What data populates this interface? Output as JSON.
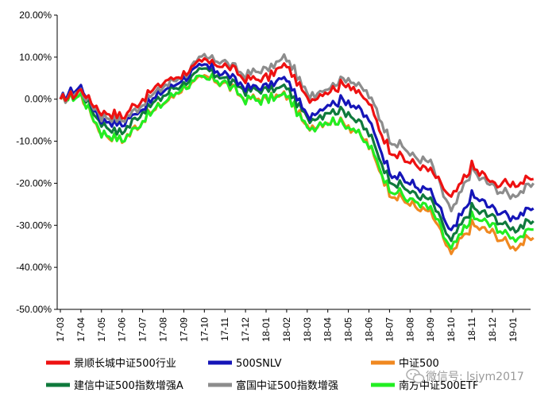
{
  "chart_data": {
    "type": "line",
    "title": "",
    "xlabel": "",
    "ylabel": "",
    "ylim": [
      -50,
      20
    ],
    "yticks": [
      20,
      10,
      0,
      -10,
      -20,
      -30,
      -40,
      -50
    ],
    "ytick_labels": [
      "20.00%",
      "10.00%",
      "0.00%",
      "-10.00%",
      "-20.00%",
      "-30.00%",
      "-40.00%",
      "-50.00%"
    ],
    "x": [
      "17-03",
      "17-04",
      "17-05",
      "17-06",
      "17-07",
      "17-08",
      "17-09",
      "17-10",
      "17-11",
      "17-12",
      "18-01",
      "18-02",
      "18-03",
      "18-04",
      "18-05",
      "18-06",
      "18-07",
      "18-08",
      "18-09",
      "18-10",
      "18-11",
      "18-12",
      "19-01",
      "19-01e"
    ],
    "xtick_labels": [
      "17-03",
      "17-04",
      "17-05",
      "17-06",
      "17-07",
      "17-08",
      "17-09",
      "17-10",
      "17-11",
      "17-12",
      "18-01",
      "18-02",
      "18-03",
      "18-04",
      "18-05",
      "18-06",
      "18-07",
      "18-08",
      "18-09",
      "18-10",
      "18-11",
      "18-12",
      "19-01"
    ],
    "grid": false,
    "legend_position": "bottom",
    "series": [
      {
        "name": "景顺长城中证500行业",
        "color": "#ee1111",
        "values": [
          0,
          2,
          -3,
          -4,
          0,
          4,
          6,
          9,
          8,
          5,
          5,
          8,
          0,
          2,
          4,
          -1,
          -12,
          -15,
          -17,
          -24,
          -16,
          -20,
          -20,
          -19
        ]
      },
      {
        "name": "500SNLV",
        "color": "#1515b8",
        "values": [
          0,
          3,
          -5,
          -6,
          -2,
          2,
          5,
          8,
          6,
          3,
          3,
          5,
          -4,
          -1,
          0,
          -5,
          -17,
          -20,
          -22,
          -32,
          -23,
          -26,
          -28,
          -26
        ]
      },
      {
        "name": "中证500",
        "color": "#f08820",
        "values": [
          0,
          1,
          -8,
          -10,
          -5,
          -1,
          3,
          5,
          4,
          0,
          0,
          1,
          -7,
          -5,
          -6,
          -11,
          -22,
          -25,
          -27,
          -37,
          -30,
          -32,
          -35,
          -33
        ]
      },
      {
        "name": "建信中证500指数增强A",
        "color": "#0f7a3c",
        "values": [
          0,
          2,
          -6,
          -8,
          -3,
          1,
          4,
          7,
          5,
          2,
          2,
          3,
          -5,
          -3,
          -3,
          -8,
          -19,
          -22,
          -24,
          -34,
          -26,
          -28,
          -31,
          -29
        ]
      },
      {
        "name": "富国中证500指数增强",
        "color": "#8c8c8c",
        "values": [
          0,
          2,
          -4,
          -5,
          -1,
          3,
          6,
          10,
          9,
          6,
          7,
          10,
          1,
          3,
          5,
          1,
          -9,
          -13,
          -15,
          -27,
          -17,
          -21,
          -23,
          -20
        ]
      },
      {
        "name": "南方中证500ETF",
        "color": "#22ee22",
        "values": [
          0,
          1,
          -8,
          -10,
          -5,
          -1,
          3,
          5,
          4,
          0,
          0,
          1,
          -7,
          -5,
          -6,
          -11,
          -21,
          -24,
          -26,
          -36,
          -28,
          -30,
          -33,
          -31
        ]
      }
    ]
  },
  "watermark": {
    "text": "微信号: lsjym2017",
    "icon": "wechat-icon"
  }
}
